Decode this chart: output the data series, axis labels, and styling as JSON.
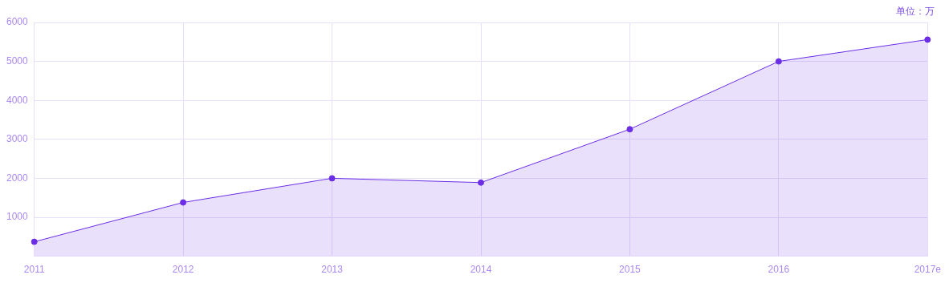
{
  "chart_data": {
    "type": "area",
    "categories": [
      "2011",
      "2012",
      "2013",
      "2014",
      "2015",
      "2016",
      "2017e"
    ],
    "series": [
      {
        "color": "#6b2ee6",
        "values": [
          370,
          1380,
          2000,
          1890,
          3260,
          5000,
          5560
        ]
      }
    ],
    "ylim": [
      0,
      6000
    ],
    "yticks": [
      1000,
      2000,
      3000,
      4000,
      5000,
      6000
    ],
    "grid": true,
    "legend": false,
    "marker": "circle",
    "annotations": [
      "单位：万"
    ]
  }
}
